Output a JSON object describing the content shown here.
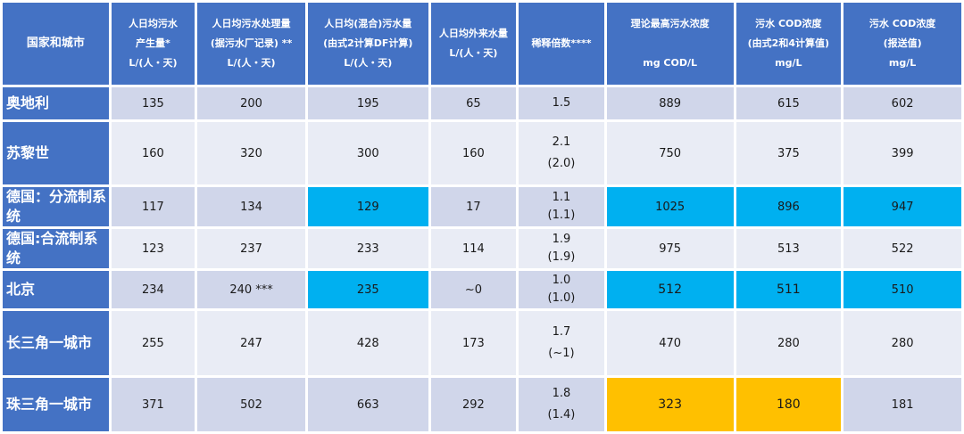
{
  "headers": [
    {
      "lines": [
        "国家和城市"
      ]
    },
    {
      "lines": [
        "人日均污水",
        "产生量*",
        "L/(人・天)"
      ]
    },
    {
      "lines": [
        "人日均污水处理量",
        "(据污水厂记录) **",
        "L/(人・天)"
      ]
    },
    {
      "lines": [
        "人日均(混合)污水量",
        "(由式2计算DF计算)",
        "L/(人・天)"
      ]
    },
    {
      "lines": [
        "人日均外来水量",
        "L/(人・天)"
      ]
    },
    {
      "lines": [
        "稀释倍数****"
      ]
    },
    {
      "lines": [
        "理论最高污水浓度",
        "",
        "mg COD/L"
      ]
    },
    {
      "lines": [
        "污水 COD浓度",
        "(由式2和4计算值)",
        "mg/L"
      ]
    },
    {
      "lines": [
        "污水 COD浓度",
        "(报送值)",
        "mg/L"
      ]
    }
  ],
  "rows": [
    {
      "name": "奥地利",
      "c1": "135",
      "c2": "200",
      "c3": "195",
      "c4": "65",
      "df": "1.5",
      "df2": "",
      "c6": "889",
      "c7": "615",
      "c8": "602"
    },
    {
      "name": "苏黎世",
      "c1": "160",
      "c2": "320",
      "c3": "300",
      "c4": "160",
      "df": "2.1",
      "df2": "(2.0)",
      "c6": "750",
      "c7": "375",
      "c8": "399"
    },
    {
      "name": "德国：分流制系统",
      "c1": "117",
      "c2": "134",
      "c3": "129",
      "c4": "17",
      "df": "1.1",
      "df2": "(1.1)",
      "c6": "1025",
      "c7": "896",
      "c8": "947"
    },
    {
      "name": "德国:合流制系统",
      "c1": "123",
      "c2": "237",
      "c3": "233",
      "c4": "114",
      "df": "1.9",
      "df2": "(1.9)",
      "c6": "975",
      "c7": "513",
      "c8": "522"
    },
    {
      "name": "北京",
      "c1": "234",
      "c2": "240 ***",
      "c3": "235",
      "c4": "~0",
      "df": "1.0",
      "df2": "(1.0)",
      "c6": "512",
      "c7": "511",
      "c8": "510"
    },
    {
      "name": "长三角一城市",
      "c1": "255",
      "c2": "247",
      "c3": "428",
      "c4": "173",
      "df": "1.7",
      "df2": "(~1)",
      "c6": "470",
      "c7": "280",
      "c8": "280"
    },
    {
      "name": "珠三角一城市",
      "c1": "371",
      "c2": "502",
      "c3": "663",
      "c4": "292",
      "df": "1.8",
      "df2": "(1.4)",
      "c6": "323",
      "c7": "180",
      "c8": "181"
    }
  ],
  "colors": {
    "header_blue": "#4472c4",
    "highlight_blue": "#00b0f0",
    "highlight_orange": "#ffc000",
    "row_dark": "#d0d6ea",
    "row_light": "#e9ecf5"
  }
}
